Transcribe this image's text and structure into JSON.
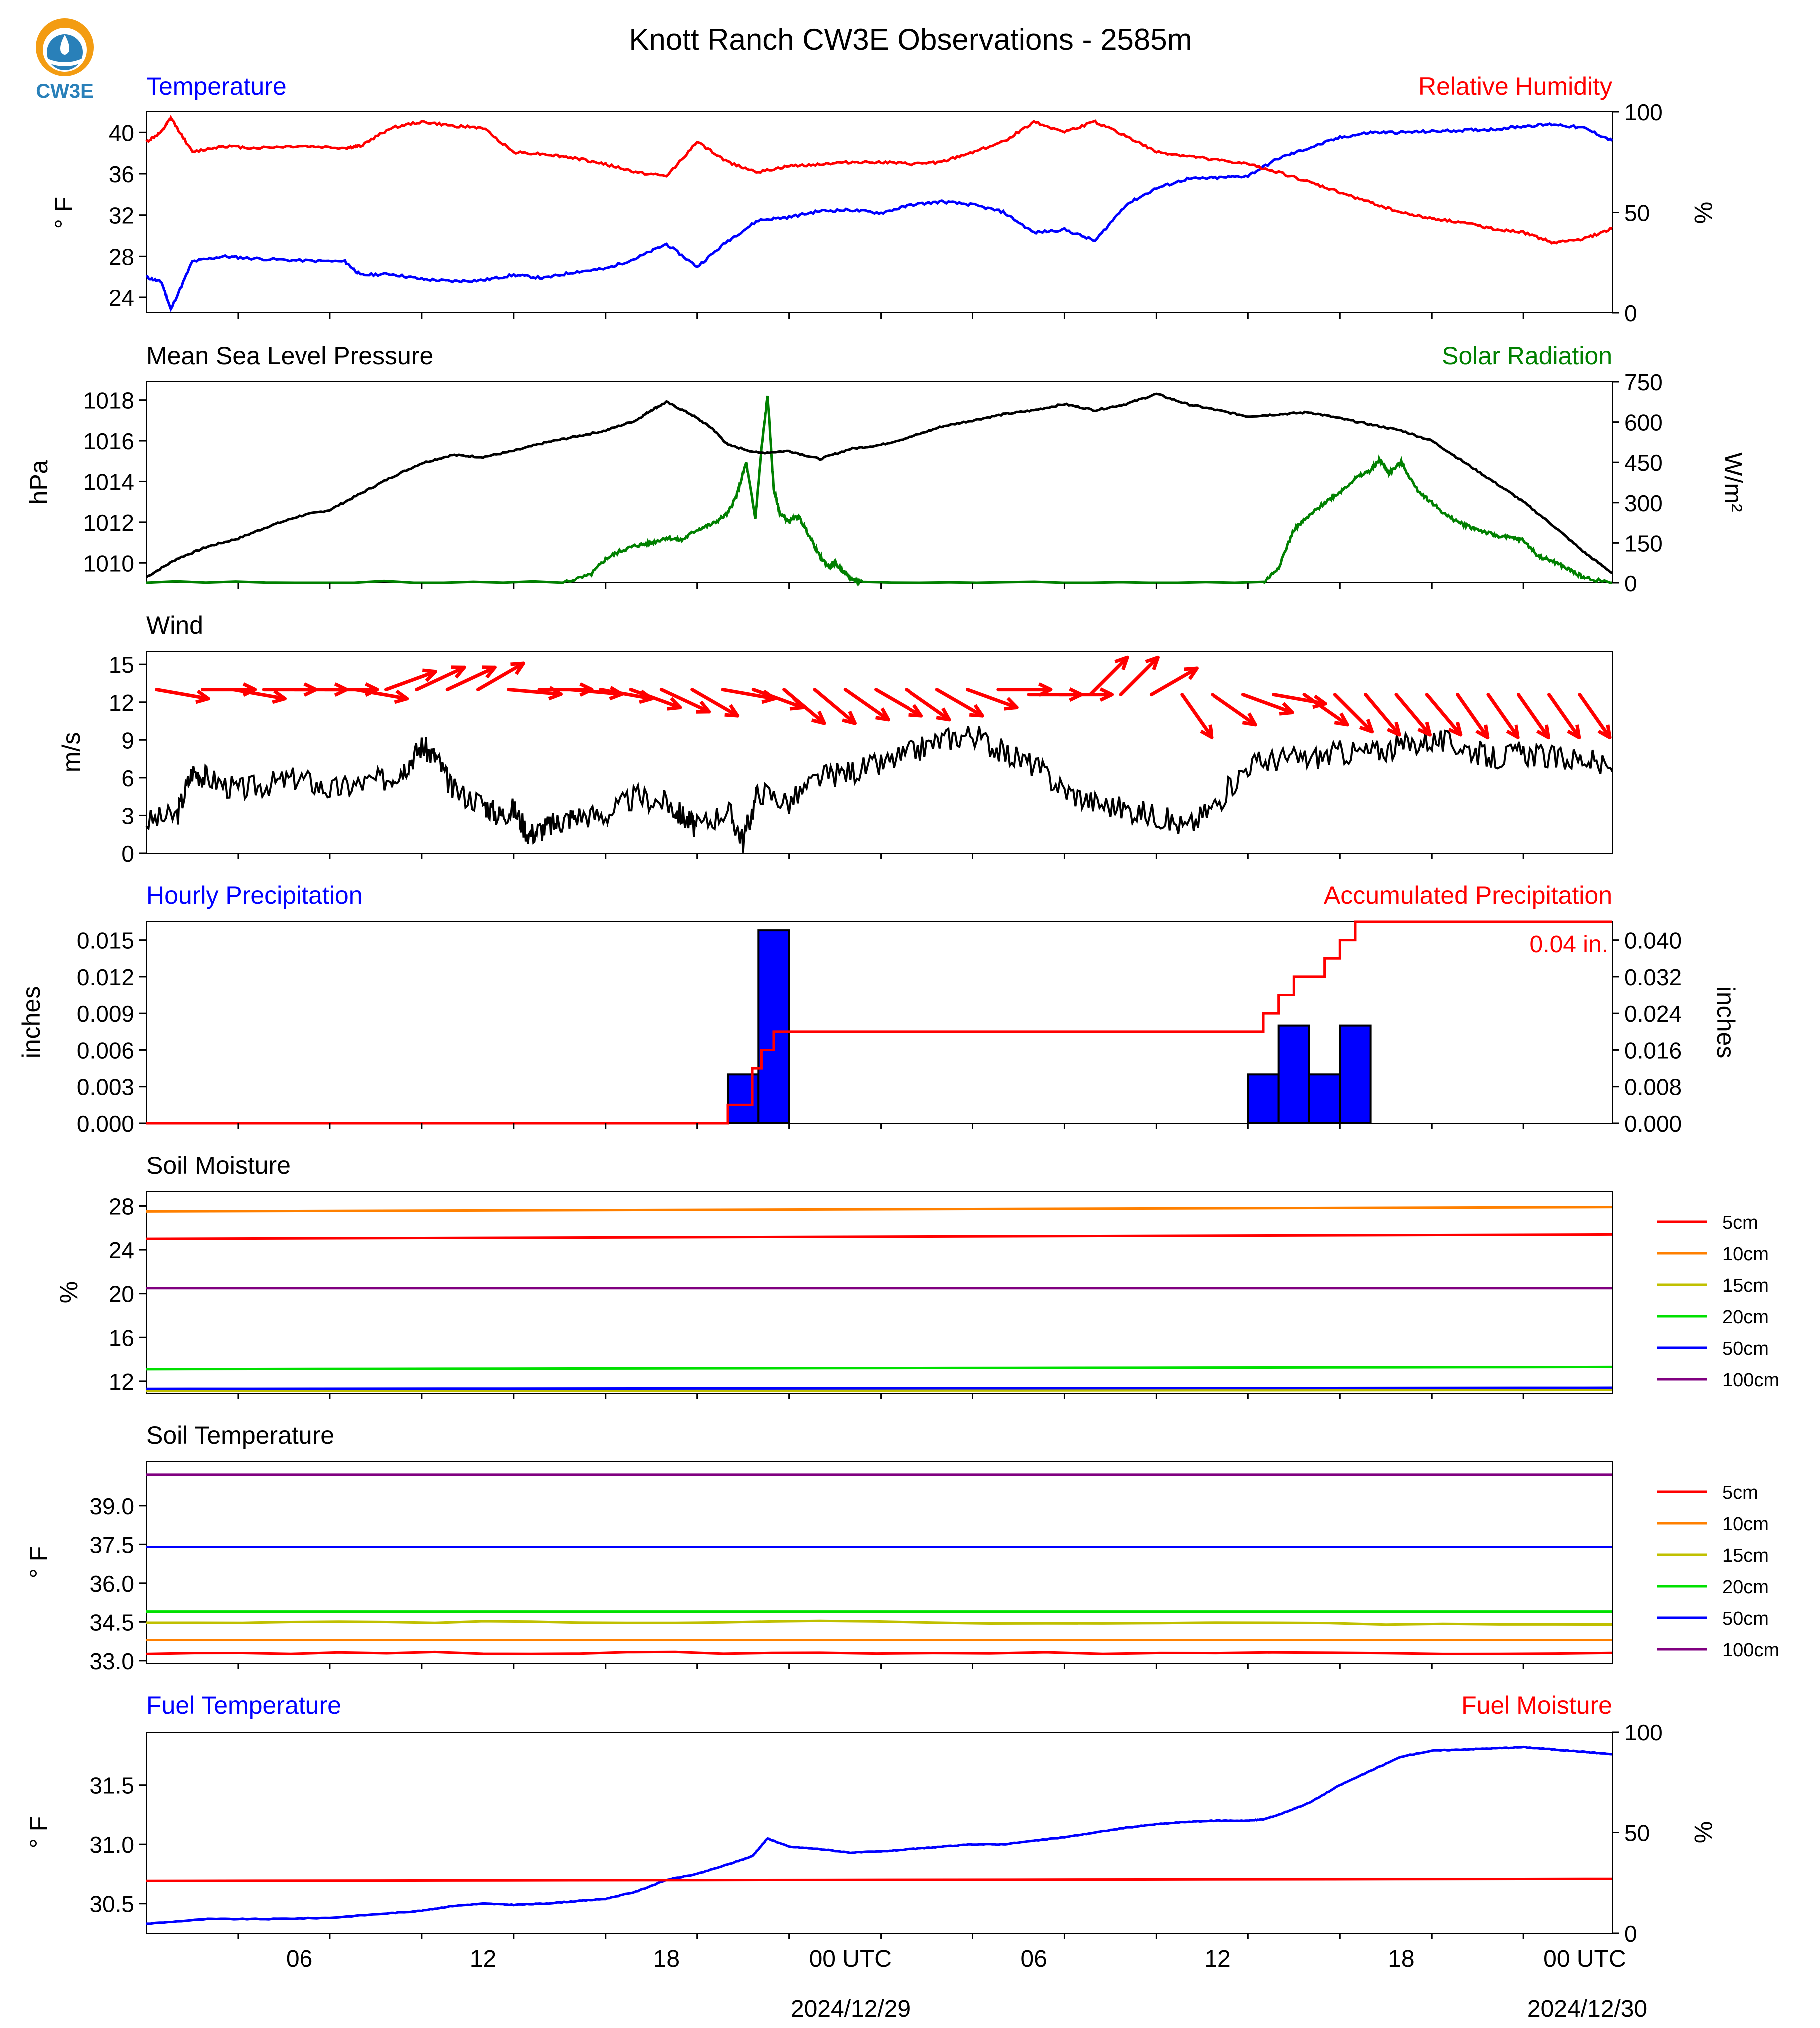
{
  "title": "Knott Ranch CW3E Observations - 2585m",
  "logo": {
    "text": "CW3E",
    "icon": "cw3e-logo-icon",
    "colors": {
      "orange": "#f39c12",
      "blue": "#2980b9"
    }
  },
  "x_axis": {
    "tick_labels": [
      "06",
      "12",
      "18",
      "00 UTC",
      "06",
      "12",
      "18",
      "00 UTC"
    ],
    "date_labels": [
      "2024/12/29",
      "2024/12/30"
    ]
  },
  "colors": {
    "red": "#ff0000",
    "blue": "#0000ff",
    "green": "#008000",
    "black": "#000000"
  },
  "chart_data": [
    {
      "type": "line",
      "id": "temperature",
      "title_left": "Temperature",
      "title_right": "Relative Humidity",
      "ylabel_left": "$^\\circ$F",
      "ylabel_right": "%",
      "ylim_left": [
        22.5,
        42
      ],
      "ylim_right": [
        0,
        100
      ],
      "yticks_left": [
        "40",
        "36",
        "32",
        "28",
        "24"
      ],
      "yticks_right": [
        "100",
        "50",
        "0"
      ],
      "x_hours": [
        0,
        0.5,
        0.8,
        1.5,
        2.5,
        3.5,
        5,
        6.5,
        7,
        8,
        9,
        10,
        11,
        12,
        13,
        14,
        15,
        16,
        17,
        18,
        19,
        20,
        21,
        22,
        23,
        24,
        25,
        26,
        27,
        28,
        29,
        30,
        31,
        32,
        33,
        34,
        35,
        36,
        37,
        38,
        39,
        40,
        41,
        42,
        43,
        44,
        45,
        46,
        47,
        47.9
      ],
      "series": [
        {
          "name": "Temperature",
          "axis": "left",
          "color": "#0000ff",
          "values": [
            26,
            25.5,
            22.8,
            27.5,
            28,
            27.8,
            27.6,
            27.5,
            26.2,
            26.3,
            25.8,
            25.6,
            25.7,
            26.2,
            25.9,
            26.5,
            26.8,
            27.8,
            29.2,
            27,
            29.5,
            31.5,
            31.8,
            32.4,
            32.5,
            32.2,
            33,
            33.3,
            33,
            32.3,
            30.3,
            30.6,
            29.5,
            33,
            34.6,
            35.5,
            35.6,
            35.8,
            37.5,
            38.5,
            39.5,
            40,
            40,
            40.1,
            40.2,
            40.3,
            40.6,
            40.8,
            40.4,
            39.2
          ]
        },
        {
          "name": "Relative Humidity",
          "axis": "right",
          "color": "#ff0000",
          "values": [
            85,
            90,
            97,
            80,
            83,
            82,
            83,
            82,
            83,
            92,
            95,
            93,
            92,
            80,
            79,
            77,
            74,
            70,
            68,
            85,
            75,
            70,
            73,
            74,
            75,
            75,
            74,
            75,
            80,
            85,
            95,
            90,
            95,
            88,
            80,
            78,
            76,
            74,
            70,
            65,
            60,
            55,
            50,
            47,
            45,
            42,
            40,
            35,
            37,
            42
          ]
        }
      ]
    },
    {
      "type": "line",
      "id": "pressure-solar",
      "title_left": "Mean Sea Level Pressure",
      "title_right": "Solar Radiation",
      "ylabel_left": "hPa",
      "ylabel_right": "W/m²",
      "ylim_left": [
        1009,
        1018.9
      ],
      "ylim_right": [
        0,
        750
      ],
      "yticks_left": [
        "1018",
        "1016",
        "1014",
        "1012",
        "1010"
      ],
      "yticks_right": [
        "750",
        "600",
        "450",
        "300",
        "150",
        "0"
      ],
      "series": [
        {
          "name": "Mean Sea Level Pressure",
          "axis": "left",
          "color": "#000000",
          "x_hours": [
            0,
            1,
            2,
            3,
            4,
            5,
            6,
            7,
            8,
            9,
            10,
            11,
            12,
            13,
            14,
            15,
            16,
            16.5,
            17,
            17.8,
            18.5,
            19,
            20,
            21,
            22,
            23,
            24,
            25,
            26,
            27,
            28,
            29,
            30,
            31,
            32,
            33,
            34,
            35,
            36,
            37,
            38,
            39,
            40,
            41,
            42,
            43,
            44,
            45,
            46,
            47,
            47.9
          ],
          "values": [
            1009.3,
            1010.2,
            1010.8,
            1011.2,
            1011.8,
            1012.3,
            1012.6,
            1013.4,
            1014.2,
            1014.9,
            1015.3,
            1015.2,
            1015.5,
            1015.9,
            1016.2,
            1016.5,
            1017.0,
            1017.5,
            1017.9,
            1017.3,
            1016.6,
            1015.8,
            1015.4,
            1015.5,
            1015.1,
            1015.6,
            1015.8,
            1016.2,
            1016.7,
            1017.0,
            1017.3,
            1017.5,
            1017.8,
            1017.5,
            1017.8,
            1018.3,
            1017.8,
            1017.5,
            1017.2,
            1017.3,
            1017.4,
            1017.1,
            1016.8,
            1016.5,
            1016.0,
            1015.0,
            1014.0,
            1013.0,
            1011.8,
            1010.5,
            1009.5
          ]
        },
        {
          "name": "Solar Radiation",
          "axis": "right",
          "color": "#008000",
          "x_hours": [
            0,
            13.6,
            14.5,
            15,
            15.5,
            16,
            16.5,
            17,
            17.5,
            18,
            18.5,
            19,
            19.3,
            19.6,
            19.9,
            20.1,
            20.3,
            20.5,
            20.7,
            21,
            21.3,
            21.6,
            22,
            22.3,
            22.5,
            22.8,
            23.1,
            23.4,
            36.5,
            37,
            37.5,
            38,
            38.5,
            39,
            39.5,
            40,
            40.3,
            40.6,
            41,
            41.5,
            42,
            42.5,
            43,
            43.5,
            44,
            44.5,
            45,
            45.5,
            46,
            46.5,
            47,
            47.9
          ],
          "values": [
            0,
            0,
            30,
            90,
            120,
            140,
            150,
            170,
            160,
            200,
            220,
            260,
            330,
            450,
            240,
            500,
            700,
            350,
            260,
            230,
            250,
            190,
            100,
            60,
            75,
            40,
            10,
            0,
            0,
            60,
            200,
            250,
            300,
            340,
            390,
            420,
            460,
            410,
            450,
            350,
            300,
            250,
            220,
            200,
            180,
            170,
            160,
            100,
            80,
            50,
            20,
            0
          ]
        }
      ]
    },
    {
      "type": "line",
      "id": "wind",
      "title_left": "Wind",
      "ylabel_left": "m/s",
      "ylim": [
        0,
        16
      ],
      "yticks": [
        "15",
        "12",
        "9",
        "6",
        "3",
        "0"
      ],
      "series": [
        {
          "name": "Wind",
          "color": "#000000",
          "x_hours": [
            0,
            1,
            1.5,
            2,
            3,
            4,
            5,
            6,
            7,
            8,
            8.5,
            9,
            9.5,
            10,
            11,
            11.5,
            12,
            12.5,
            13,
            13.5,
            14,
            15,
            16,
            17,
            17.5,
            18,
            19,
            19.5,
            20,
            21,
            22,
            23,
            24,
            25,
            26,
            27,
            28,
            29,
            30,
            31,
            32,
            33,
            34,
            35,
            36,
            37,
            38,
            39,
            40,
            41,
            42,
            43,
            44,
            45,
            46,
            47,
            47.9
          ],
          "values": [
            2.5,
            3,
            6.5,
            6,
            5,
            5.5,
            6,
            5,
            5.5,
            6,
            7,
            8.5,
            7.5,
            5,
            4,
            3,
            3.5,
            1.5,
            2,
            2.5,
            3,
            3,
            4.5,
            4,
            3,
            2,
            3.5,
            1,
            5,
            4,
            6,
            6.5,
            7,
            8,
            9,
            9.5,
            8,
            7,
            5,
            4,
            3.5,
            3,
            2,
            4,
            7,
            7.5,
            7.5,
            8,
            8,
            8.5,
            9,
            8.5,
            7.5,
            8,
            7.5,
            7.5,
            6.5
          ]
        }
      ],
      "wind_barbs": {
        "x_hours": [
          0.5,
          2,
          3,
          4,
          5,
          6,
          7,
          8,
          9,
          10,
          11,
          12,
          13,
          14,
          15,
          16,
          17,
          18,
          19,
          20,
          21,
          22,
          23,
          24,
          25,
          26,
          27,
          28,
          29,
          30,
          31,
          32,
          33,
          34,
          35,
          36,
          37,
          38,
          39,
          40,
          41,
          42,
          43,
          44,
          45,
          46,
          47
        ],
        "direction_deg": [
          -10,
          0,
          -10,
          0,
          0,
          0,
          -10,
          20,
          25,
          25,
          30,
          -5,
          0,
          -5,
          -10,
          -20,
          -25,
          -30,
          -10,
          -20,
          -40,
          -40,
          -35,
          -30,
          -35,
          -30,
          -20,
          0,
          0,
          0,
          45,
          45,
          30,
          -55,
          -35,
          -20,
          -10,
          -35,
          -45,
          -50,
          -50,
          -50,
          -55,
          -55,
          -55,
          -55,
          -55
        ]
      }
    },
    {
      "type": "bar",
      "id": "precipitation",
      "title_left": "Hourly Precipitation",
      "title_right": "Accumulated Precipitation",
      "ylabel_left": "inches",
      "ylabel_right": "inches",
      "ylim_left": [
        0,
        0.0165
      ],
      "ylim_right": [
        0,
        0.044
      ],
      "yticks_left": [
        "0.015",
        "0.012",
        "0.009",
        "0.006",
        "0.003",
        "0.000"
      ],
      "yticks_right": [
        "0.040",
        "0.032",
        "0.024",
        "0.016",
        "0.008",
        "0.000"
      ],
      "annotation": "0.04 in.",
      "series": [
        {
          "name": "Hourly Precipitation",
          "type": "bar",
          "color": "#0000ff",
          "x_hours": [
            19,
            20,
            36,
            37,
            38,
            39
          ],
          "values": [
            0.004,
            0.0158,
            0.004,
            0.008,
            0.004,
            0.008
          ]
        },
        {
          "name": "Accumulated Precipitation",
          "type": "step",
          "color": "#ff0000",
          "x_hours": [
            0,
            18.5,
            19,
            19.5,
            19.8,
            20.1,
            20.5,
            36.3,
            36.5,
            37,
            37.5,
            38,
            38.5,
            39,
            39.5,
            47.9
          ],
          "values": [
            0,
            0,
            0.004,
            0.004,
            0.012,
            0.016,
            0.02,
            0.02,
            0.024,
            0.028,
            0.032,
            0.032,
            0.036,
            0.04,
            0.044,
            0.044
          ]
        }
      ]
    },
    {
      "type": "line",
      "id": "soil-moisture",
      "title_left": "Soil Moisture",
      "ylabel_left": "%",
      "ylim": [
        10.9,
        29.3
      ],
      "yticks": [
        "28",
        "24",
        "20",
        "16",
        "12"
      ],
      "legend_labels": [
        "5cm",
        "10cm",
        "15cm",
        "20cm",
        "50cm",
        "100cm"
      ],
      "series": [
        {
          "name": "5cm",
          "color": "#ff0000",
          "values": [
            25.0,
            25.4
          ]
        },
        {
          "name": "10cm",
          "color": "#ff8000",
          "values": [
            27.5,
            27.9
          ]
        },
        {
          "name": "15cm",
          "color": "#c0c000",
          "values": [
            11.1,
            11.2
          ]
        },
        {
          "name": "20cm",
          "color": "#00e000",
          "values": [
            13.1,
            13.3
          ]
        },
        {
          "name": "50cm",
          "color": "#0000ff",
          "values": [
            11.3,
            11.4
          ]
        },
        {
          "name": "100cm",
          "color": "#800080",
          "values": [
            20.5,
            20.5
          ]
        }
      ]
    },
    {
      "type": "line",
      "id": "soil-temperature",
      "title_left": "Soil Temperature",
      "ylabel_left": "$^\\circ$F",
      "ylim": [
        32.9,
        40.7
      ],
      "yticks": [
        "39.0",
        "37.5",
        "36.0",
        "34.5",
        "33.0"
      ],
      "legend_labels": [
        "5cm",
        "10cm",
        "15cm",
        "20cm",
        "50cm",
        "100cm"
      ],
      "series": [
        {
          "name": "5cm",
          "color": "#ff0000",
          "values": [
            33.3,
            33.3
          ]
        },
        {
          "name": "10cm",
          "color": "#ff8000",
          "values": [
            33.8,
            33.8
          ]
        },
        {
          "name": "15cm",
          "color": "#c0c000",
          "values": [
            34.5,
            34.4
          ]
        },
        {
          "name": "20cm",
          "color": "#00e000",
          "values": [
            34.9,
            34.9
          ]
        },
        {
          "name": "50cm",
          "color": "#0000ff",
          "values": [
            37.4,
            37.4
          ]
        },
        {
          "name": "100cm",
          "color": "#800080",
          "values": [
            40.2,
            40.2
          ]
        }
      ]
    },
    {
      "type": "line",
      "id": "fuel",
      "title_left": "Fuel Temperature",
      "title_right": "Fuel Moisture",
      "ylabel_left": "$^\\circ$F",
      "ylabel_right": "%",
      "ylim_left": [
        30.25,
        31.95
      ],
      "ylim_right": [
        0,
        100
      ],
      "yticks_left": [
        "31.5",
        "31.0",
        "30.5"
      ],
      "yticks_right": [
        "100",
        "50",
        "0"
      ],
      "series": [
        {
          "name": "Fuel Temperature",
          "axis": "left",
          "color": "#0000ff",
          "x_hours": [
            0,
            2,
            4,
            6,
            8,
            9,
            10,
            11,
            12,
            13,
            14,
            15,
            16,
            17,
            18,
            19,
            19.8,
            20.3,
            21,
            22,
            23,
            24,
            25,
            26,
            27,
            28,
            29,
            30,
            31,
            32,
            33,
            34,
            35,
            36,
            36.5,
            37,
            38,
            39,
            40,
            41,
            42,
            43,
            44,
            45,
            46,
            47,
            47.9
          ],
          "values": [
            30.33,
            30.37,
            30.37,
            30.38,
            30.42,
            30.44,
            30.48,
            30.5,
            30.49,
            30.5,
            30.52,
            30.54,
            30.6,
            30.7,
            30.75,
            30.83,
            30.9,
            31.05,
            30.98,
            30.96,
            30.93,
            30.94,
            30.96,
            30.98,
            31.0,
            31.0,
            31.03,
            31.06,
            31.1,
            31.14,
            31.17,
            31.19,
            31.2,
            31.2,
            31.21,
            31.25,
            31.35,
            31.5,
            31.62,
            31.74,
            31.79,
            31.8,
            31.81,
            31.82,
            31.8,
            31.78,
            31.76
          ]
        },
        {
          "name": "Fuel Moisture",
          "axis": "right",
          "color": "#ff0000",
          "x_hours": [
            0,
            47.9
          ],
          "values": [
            26,
            27
          ]
        }
      ]
    }
  ]
}
